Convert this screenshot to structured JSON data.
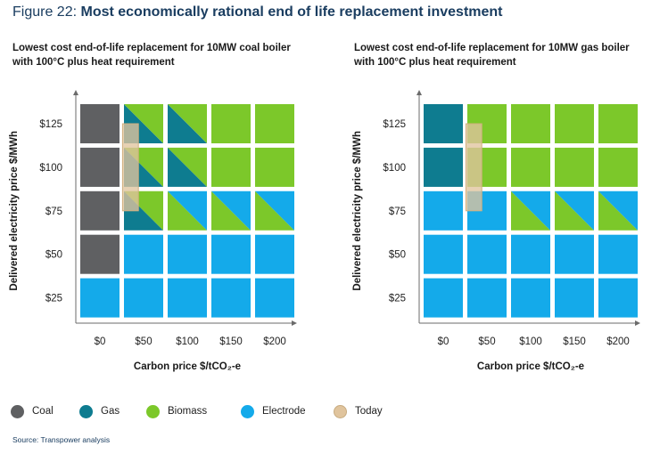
{
  "figure": {
    "prefix": "Figure 22: ",
    "title": "Most economically rational end of life replacement investment"
  },
  "chart_data": [
    {
      "type": "heatmap",
      "title": "Lowest cost end-of-life replacement for 10MW coal boiler with 100°C plus heat requirement",
      "title_lines": [
        "Lowest cost end-of-life replacement for 10MW coal boiler",
        "with 100°C plus heat requirement"
      ],
      "xlabel": "Carbon price $/tCO₂-e",
      "ylabel": "Delivered electricity price $/MWh",
      "x_ticks": [
        "$0",
        "$50",
        "$100",
        "$150",
        "$200"
      ],
      "y_ticks": [
        "$125",
        "$100",
        "$75",
        "$50",
        "$25"
      ],
      "cells": [
        [
          "coal",
          "gas/biomass",
          "gas/biomass",
          "biomass",
          "biomass"
        ],
        [
          "coal",
          "gas/biomass",
          "gas/biomass",
          "biomass",
          "biomass"
        ],
        [
          "coal",
          "gas/biomass",
          "biomass/electrode",
          "biomass/electrode",
          "biomass/electrode"
        ],
        [
          "coal",
          "electrode",
          "electrode",
          "electrode",
          "electrode"
        ],
        [
          "electrode",
          "electrode",
          "electrode",
          "electrode",
          "electrode"
        ]
      ],
      "today": {
        "carbon_price": [
          30,
          40
        ],
        "electricity_price": [
          75,
          125
        ]
      }
    },
    {
      "type": "heatmap",
      "title": "Lowest cost end-of-life replacement for 10MW gas boiler with 100°C plus heat requirement",
      "title_lines": [
        "Lowest cost end-of-life replacement for 10MW gas boiler",
        "with 100°C plus heat requirement"
      ],
      "xlabel": "Carbon price $/tCO₂-e",
      "ylabel": "Delivered electricity price $/MWh",
      "x_ticks": [
        "$0",
        "$50",
        "$100",
        "$150",
        "$200"
      ],
      "y_ticks": [
        "$125",
        "$100",
        "$75",
        "$50",
        "$25"
      ],
      "cells": [
        [
          "gas",
          "biomass",
          "biomass",
          "biomass",
          "biomass"
        ],
        [
          "gas",
          "biomass",
          "biomass",
          "biomass",
          "biomass"
        ],
        [
          "electrode",
          "electrode",
          "biomass/electrode",
          "biomass/electrode",
          "biomass/electrode"
        ],
        [
          "electrode",
          "electrode",
          "electrode",
          "electrode",
          "electrode"
        ],
        [
          "electrode",
          "electrode",
          "electrode",
          "electrode",
          "electrode"
        ]
      ],
      "today": {
        "carbon_price": [
          30,
          40
        ],
        "electricity_price": [
          75,
          125
        ]
      }
    }
  ],
  "legend": [
    {
      "key": "coal",
      "label": "Coal",
      "color": "#5f6062"
    },
    {
      "key": "gas",
      "label": "Gas",
      "color": "#0e7c90"
    },
    {
      "key": "biomass",
      "label": "Biomass",
      "color": "#7cc82a"
    },
    {
      "key": "electrode",
      "label": "Electrode",
      "color": "#14aaea"
    },
    {
      "key": "today",
      "label": "Today",
      "color": "#e0c49d"
    }
  ],
  "source": "Source: Transpower analysis"
}
